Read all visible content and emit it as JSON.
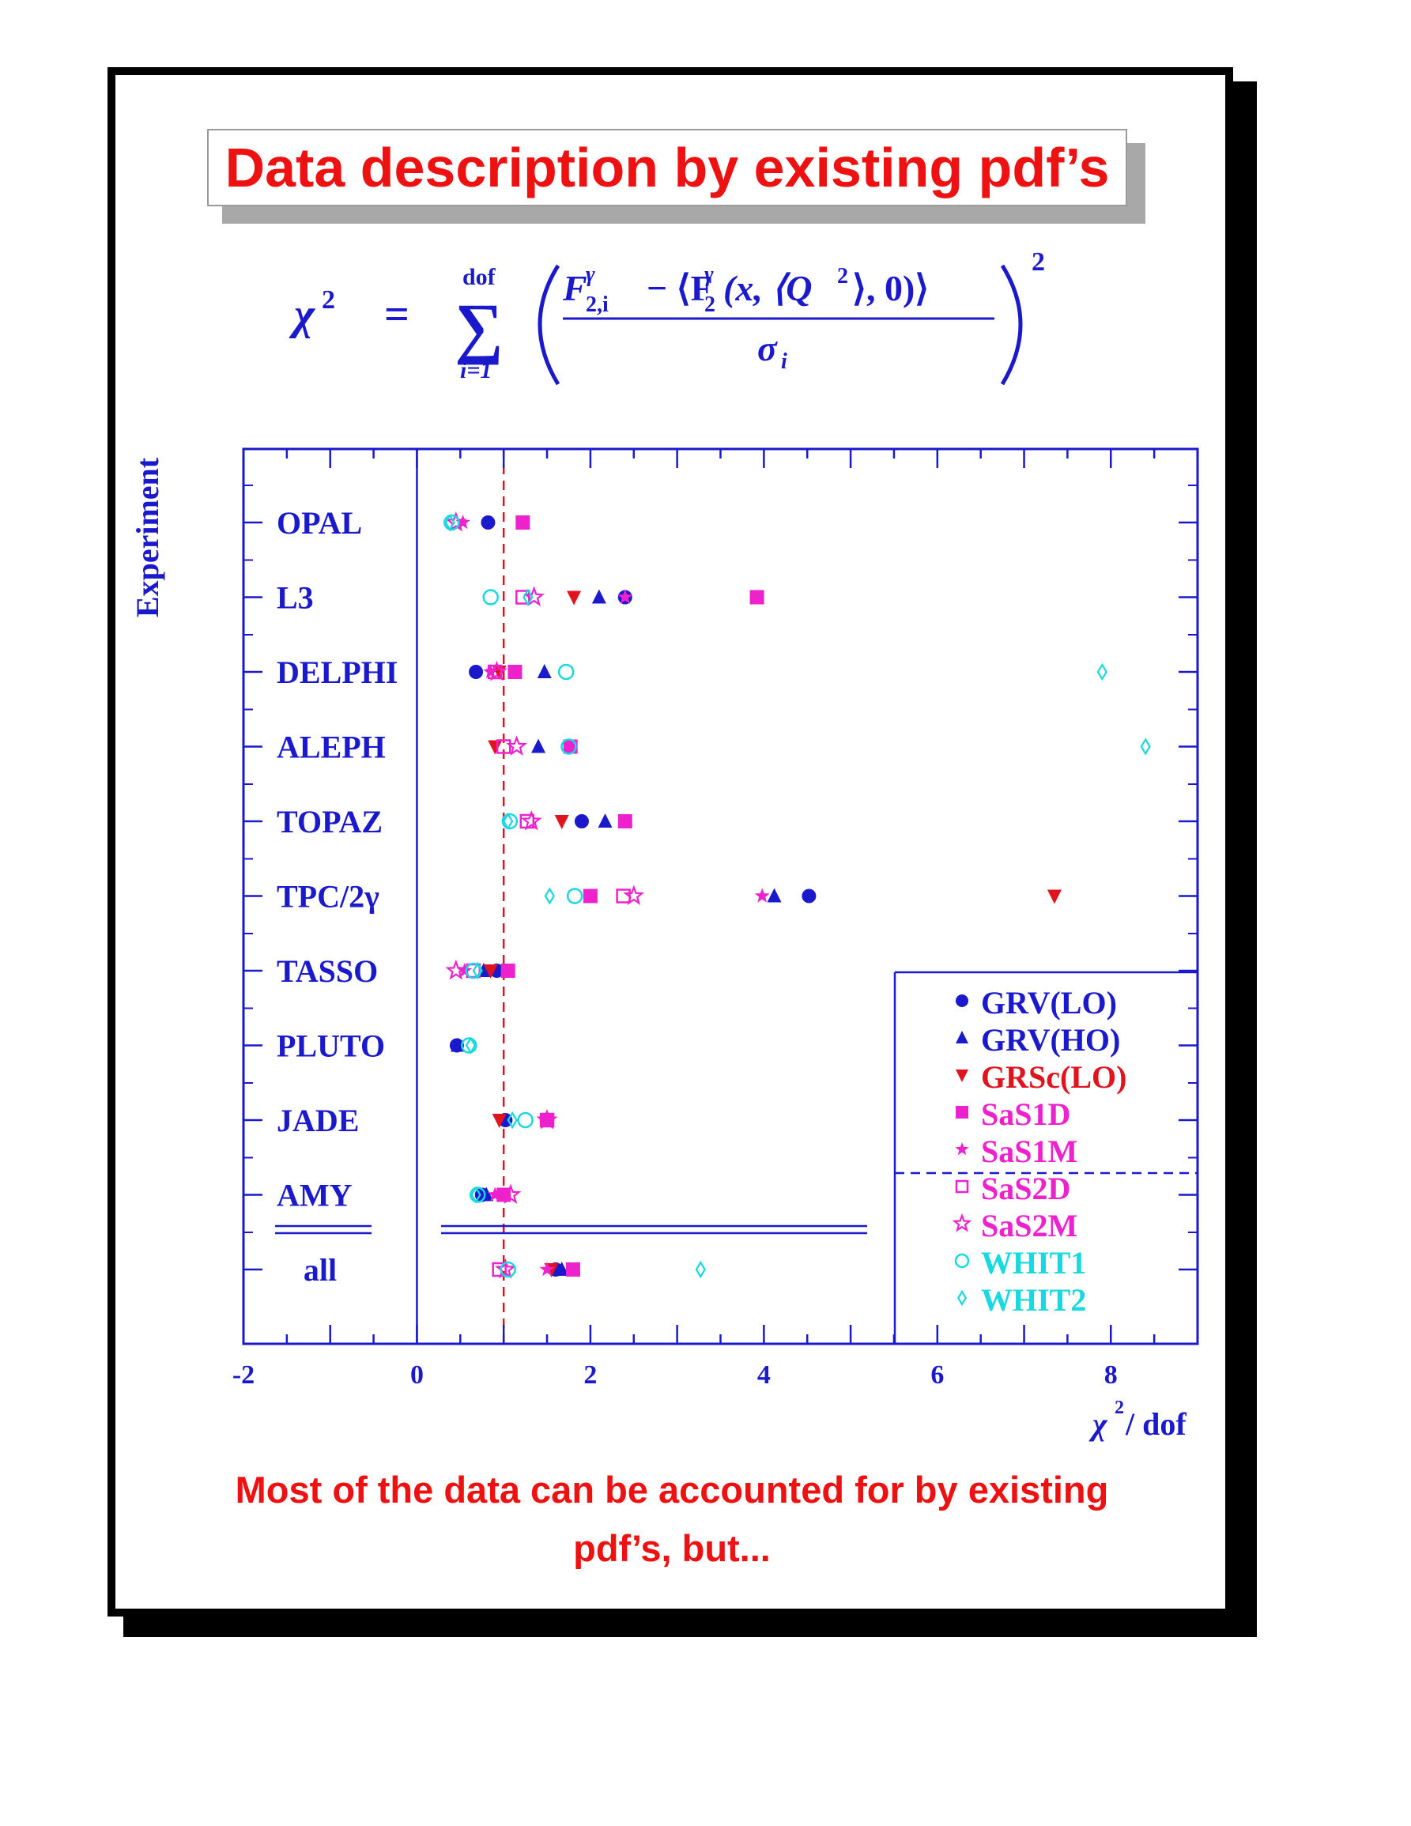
{
  "slide": {
    "title": "Data description by existing pdf’s",
    "formula": {
      "lhs": "χ",
      "lhs_sup": "2",
      "equals": "=",
      "sum_upper": "dof",
      "sum_lower": "i=1",
      "num_main": "F",
      "num_sub": "2,i",
      "num_sup": "γ",
      "num_rest_a": "− ⟨F",
      "num_rest_sub": "2",
      "num_rest_sup": "γ",
      "num_rest_b": "(x, ⟨Q",
      "num_rest_b_sup": "2",
      "num_rest_c": "⟩, 0)⟩",
      "denominator": "σ",
      "denominator_sub": "i",
      "outer_sup": "2"
    },
    "footer_line1": "Most of the data can be accounted for by existing",
    "footer_line2": "pdf’s, but..."
  },
  "chart_data": {
    "type": "scatter",
    "xlabel": "χ",
    "xlabel_sup": "2",
    "xlabel_rest": " / dof",
    "ylabel": "Experiment",
    "xlim": [
      -2,
      9
    ],
    "xticks": [
      "-2",
      "0",
      "2",
      "4",
      "6",
      "8"
    ],
    "xtick_values": [
      -2,
      0,
      2,
      4,
      6,
      8
    ],
    "reference_line_x": 1,
    "experiments": [
      "OPAL",
      "L3",
      "DELPHI",
      "ALEPH",
      "TOPAZ",
      "TPC/2γ",
      "TASSO",
      "PLUTO",
      "JADE",
      "AMY",
      "all"
    ],
    "colors": {
      "axis": "#1a1acc",
      "blue": "#1a1acc",
      "red": "#e0141e",
      "magenta": "#ee22cc",
      "cyan": "#18d8e0"
    },
    "series": [
      {
        "name": "GRV(LO)",
        "marker": "circle-filled",
        "color": "#1a1acc",
        "values": [
          0.82,
          2.4,
          0.68,
          null,
          1.9,
          4.52,
          0.92,
          0.46,
          1.02,
          0.75,
          1.6
        ]
      },
      {
        "name": "GRV(HO)",
        "marker": "triangle-filled",
        "color": "#1a1acc",
        "values": [
          null,
          2.1,
          1.47,
          1.4,
          2.17,
          4.12,
          0.77,
          0.47,
          null,
          0.8,
          1.67
        ]
      },
      {
        "name": "GRSc(LO)",
        "marker": "triangle-down",
        "color": "#e0141e",
        "values": [
          null,
          1.81,
          0.95,
          0.9,
          1.67,
          7.35,
          0.85,
          null,
          0.95,
          null,
          1.55
        ]
      },
      {
        "name": "SaS1D",
        "marker": "square-filled",
        "color": "#ee22cc",
        "values": [
          1.22,
          3.92,
          1.13,
          1.77,
          2.4,
          2.0,
          1.05,
          null,
          1.5,
          1.0,
          1.8
        ]
      },
      {
        "name": "SaS1M",
        "marker": "star-filled",
        "color": "#ee22cc",
        "values": [
          0.53,
          2.4,
          0.85,
          null,
          null,
          3.98,
          0.55,
          null,
          null,
          0.9,
          1.5
        ]
      },
      {
        "name": "SaS2D",
        "marker": "square-open",
        "color": "#ee22cc",
        "values": [
          null,
          1.22,
          0.9,
          1.0,
          1.27,
          2.38,
          0.65,
          null,
          1.5,
          null,
          0.95
        ]
      },
      {
        "name": "SaS2M",
        "marker": "star-open",
        "color": "#ee22cc",
        "values": [
          0.45,
          1.35,
          0.92,
          1.15,
          1.32,
          2.5,
          0.45,
          null,
          1.5,
          1.08,
          1.02
        ]
      },
      {
        "name": "WHIT1",
        "marker": "circle-open",
        "color": "#18d8e0",
        "values": [
          0.4,
          0.85,
          1.72,
          1.75,
          1.07,
          1.82,
          0.65,
          0.6,
          1.25,
          0.7,
          1.05
        ]
      },
      {
        "name": "WHIT2",
        "marker": "diamond-open",
        "color": "#18d8e0",
        "values": [
          0.38,
          1.28,
          7.9,
          8.4,
          1.05,
          1.53,
          0.7,
          0.62,
          1.1,
          0.68,
          3.27
        ]
      }
    ],
    "legend_position": "lower-right"
  }
}
